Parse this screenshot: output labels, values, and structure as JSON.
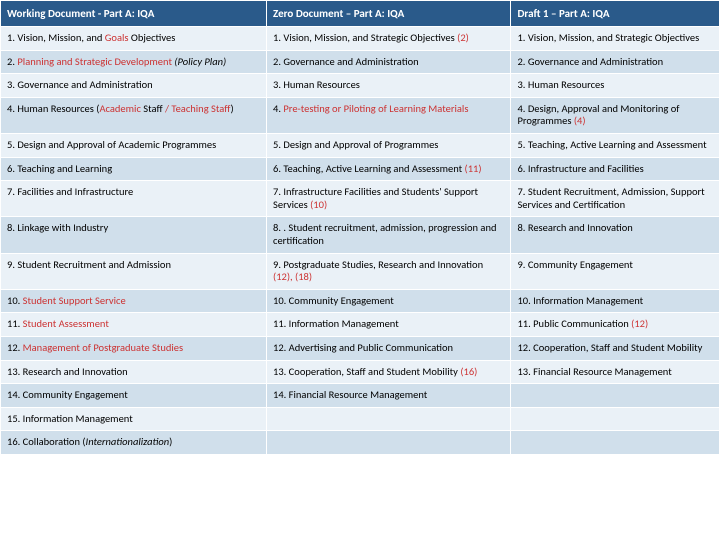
{
  "table": {
    "columns": [
      {
        "label": "Working Document  - Part A: IQA"
      },
      {
        "label": "Zero Document – Part A: IQA"
      },
      {
        "label": "Draft 1 – Part A: IQA"
      }
    ],
    "colors": {
      "header_bg": "#2a5a8a",
      "header_fg": "#ffffff",
      "band_light": "#eaf1f7",
      "band_dark": "#d0dfeb",
      "text_default": "#000000",
      "text_red": "#cc3333"
    },
    "rows": [
      {
        "band": "light",
        "cells": [
          [
            {
              "t": "1. Vision, Mission, and ",
              "c": "#000"
            },
            {
              "t": "Goals ",
              "c": "#cc3333"
            },
            {
              "t": "Objectives",
              "c": "#000"
            }
          ],
          [
            {
              "t": "1. Vision, Mission, and Strategic Objectives ",
              "c": "#000"
            },
            {
              "t": "(2)",
              "c": "#cc3333"
            }
          ],
          [
            {
              "t": "1. Vision, Mission, and Strategic Objectives",
              "c": "#000"
            }
          ]
        ]
      },
      {
        "band": "dark",
        "cells": [
          [
            {
              "t": "2. ",
              "c": "#000"
            },
            {
              "t": "Planning and Strategic Development ",
              "c": "#cc3333"
            },
            {
              "t": "(Policy Plan)",
              "c": "#000",
              "i": true
            }
          ],
          [
            {
              "t": "2. Governance and Administration",
              "c": "#000"
            }
          ],
          [
            {
              "t": "2. Governance and Administration",
              "c": "#000"
            }
          ]
        ]
      },
      {
        "band": "light",
        "cells": [
          [
            {
              "t": "3. Governance and Administration",
              "c": "#000"
            }
          ],
          [
            {
              "t": "3. Human Resources",
              "c": "#000"
            }
          ],
          [
            {
              "t": "3. Human Resources",
              "c": "#000"
            }
          ]
        ]
      },
      {
        "band": "dark",
        "cells": [
          [
            {
              "t": "4. Human Resources (",
              "c": "#000"
            },
            {
              "t": "Academic ",
              "c": "#cc3333"
            },
            {
              "t": "Staff ",
              "c": "#000"
            },
            {
              "t": "/ Teaching Staff",
              "c": "#cc3333"
            },
            {
              "t": ")",
              "c": "#000"
            }
          ],
          [
            {
              "t": "4. ",
              "c": "#000"
            },
            {
              "t": "Pre-testing or Piloting of Learning Materials",
              "c": "#cc3333"
            }
          ],
          [
            {
              "t": "4. Design, Approval and Monitoring of Programmes  ",
              "c": "#000"
            },
            {
              "t": "(4)",
              "c": "#cc3333"
            }
          ]
        ]
      },
      {
        "band": "light",
        "cells": [
          [
            {
              "t": "5. Design and Approval of Academic Programmes",
              "c": "#000"
            }
          ],
          [
            {
              "t": "5. Design and Approval of Programmes",
              "c": "#000"
            }
          ],
          [
            {
              "t": "5. Teaching, Active Learning and Assessment",
              "c": "#000"
            }
          ]
        ]
      },
      {
        "band": "dark",
        "cells": [
          [
            {
              "t": "6. Teaching and Learning",
              "c": "#000"
            }
          ],
          [
            {
              "t": "6. Teaching, Active Learning and Assessment ",
              "c": "#000"
            },
            {
              "t": "(11)",
              "c": "#cc3333"
            }
          ],
          [
            {
              "t": "6. Infrastructure and Facilities",
              "c": "#000"
            }
          ]
        ]
      },
      {
        "band": "light",
        "cells": [
          [
            {
              "t": "7. Facilities and Infrastructure",
              "c": "#000"
            }
          ],
          [
            {
              "t": "7. Infrastructure Facilities and Students' Support Services  ",
              "c": "#000"
            },
            {
              "t": "(10)",
              "c": "#cc3333"
            }
          ],
          [
            {
              "t": "7. Student Recruitment, Admission, Support Services and Certification",
              "c": "#000"
            }
          ]
        ]
      },
      {
        "band": "dark",
        "cells": [
          [
            {
              "t": "8. Linkage with Industry",
              "c": "#000"
            }
          ],
          [
            {
              "t": "8. . Student recruitment, admission, progression and certification",
              "c": "#000"
            }
          ],
          [
            {
              "t": "8. Research and Innovation",
              "c": "#000"
            }
          ]
        ]
      },
      {
        "band": "light",
        "cells": [
          [
            {
              "t": "9. Student Recruitment and Admission",
              "c": "#000"
            }
          ],
          [
            {
              "t": "9. Postgraduate Studies, Research and Innovation ",
              "c": "#000"
            },
            {
              "t": "(12),  (18)",
              "c": "#cc3333"
            }
          ],
          [
            {
              "t": "9. Community Engagement",
              "c": "#000"
            }
          ]
        ]
      },
      {
        "band": "dark",
        "cells": [
          [
            {
              "t": "10. ",
              "c": "#000"
            },
            {
              "t": "Student Support Service",
              "c": "#cc3333"
            }
          ],
          [
            {
              "t": "10. Community Engagement",
              "c": "#000"
            }
          ],
          [
            {
              "t": "10. Information Management",
              "c": "#000"
            }
          ]
        ]
      },
      {
        "band": "light",
        "cells": [
          [
            {
              "t": "11. ",
              "c": "#000"
            },
            {
              "t": "Student Assessment",
              "c": "#cc3333"
            }
          ],
          [
            {
              "t": "11. Information Management",
              "c": "#000"
            }
          ],
          [
            {
              "t": "11. Public Communication  ",
              "c": "#000"
            },
            {
              "t": "(12)",
              "c": "#cc3333"
            }
          ]
        ]
      },
      {
        "band": "dark",
        "cells": [
          [
            {
              "t": "12. ",
              "c": "#000"
            },
            {
              "t": "Management of Postgraduate Studies",
              "c": "#cc3333"
            }
          ],
          [
            {
              "t": "12. Advertising and Public Communication",
              "c": "#000"
            }
          ],
          [
            {
              "t": "12. Cooperation, Staff and Student Mobility",
              "c": "#000"
            }
          ]
        ]
      },
      {
        "band": "light",
        "cells": [
          [
            {
              "t": "13. Research and Innovation",
              "c": "#000"
            }
          ],
          [
            {
              "t": "13. Cooperation, Staff and Student Mobility ",
              "c": "#000"
            },
            {
              "t": "(16)",
              "c": "#cc3333"
            }
          ],
          [
            {
              "t": "13. Financial Resource Management",
              "c": "#000"
            }
          ]
        ]
      },
      {
        "band": "dark",
        "cells": [
          [
            {
              "t": "14. Community Engagement",
              "c": "#000"
            }
          ],
          [
            {
              "t": "14. Financial Resource Management",
              "c": "#000"
            }
          ],
          [
            {
              "t": "",
              "c": "#000"
            }
          ]
        ]
      },
      {
        "band": "light",
        "cells": [
          [
            {
              "t": "15. Information Management",
              "c": "#000"
            }
          ],
          [
            {
              "t": "",
              "c": "#000"
            }
          ],
          [
            {
              "t": "",
              "c": "#000"
            }
          ]
        ]
      },
      {
        "band": "dark",
        "cells": [
          [
            {
              "t": "16. Collaboration  (",
              "c": "#000"
            },
            {
              "t": "Internationalization",
              "c": "#000",
              "i": true
            },
            {
              "t": ")",
              "c": "#000"
            }
          ],
          [
            {
              "t": "",
              "c": "#000"
            }
          ],
          [
            {
              "t": "",
              "c": "#000"
            }
          ]
        ]
      }
    ]
  }
}
